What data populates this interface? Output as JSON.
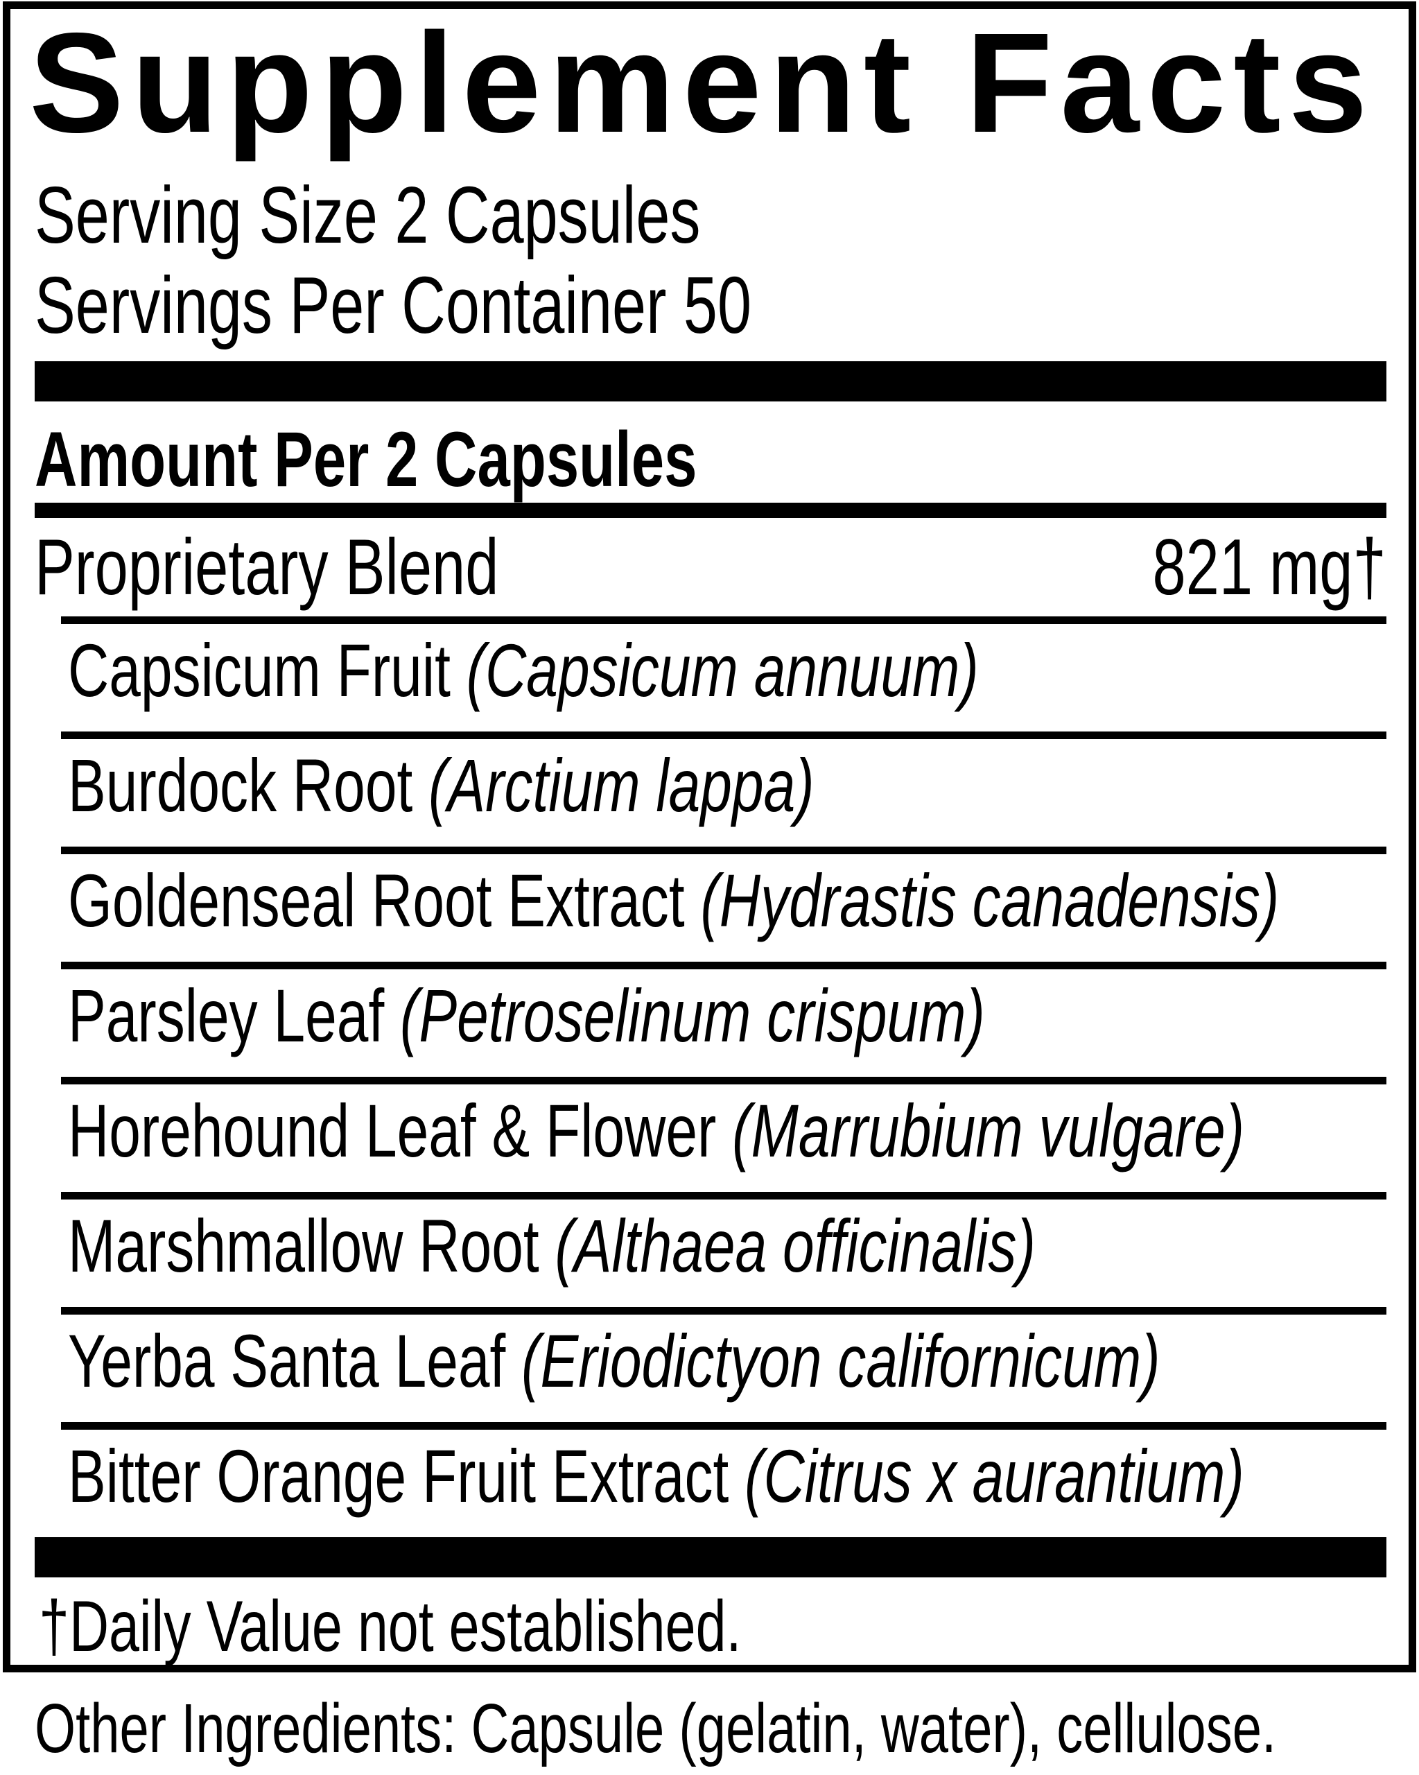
{
  "label": {
    "title": "Supplement Facts",
    "serving_size": "Serving Size 2 Capsules",
    "servings_per_container": "Servings Per Container 50",
    "column_header": "Amount Per 2 Capsules",
    "proprietary_blend": {
      "name": "Proprietary Blend",
      "amount": "821 mg†"
    },
    "ingredients": [
      {
        "name": "Capsicum Fruit",
        "latin": "(Capsicum annuum)"
      },
      {
        "name": "Burdock Root",
        "latin": "(Arctium lappa)"
      },
      {
        "name": "Goldenseal Root Extract",
        "latin": "(Hydrastis canadensis)"
      },
      {
        "name": "Parsley Leaf",
        "latin": "(Petroselinum crispum)"
      },
      {
        "name": "Horehound Leaf & Flower",
        "latin": "(Marrubium vulgare)"
      },
      {
        "name": "Marshmallow Root",
        "latin": "(Althaea officinalis)"
      },
      {
        "name": "Yerba Santa Leaf",
        "latin": "(Eriodictyon californicum)"
      },
      {
        "name": "Bitter Orange Fruit Extract",
        "latin": "(Citrus x aurantium)"
      }
    ],
    "footnote": "†Daily Value not established.",
    "other_ingredients": "Other Ingredients: Capsule (gelatin, water), cellulose."
  },
  "colors": {
    "ink": "#000000",
    "background": "#ffffff"
  }
}
